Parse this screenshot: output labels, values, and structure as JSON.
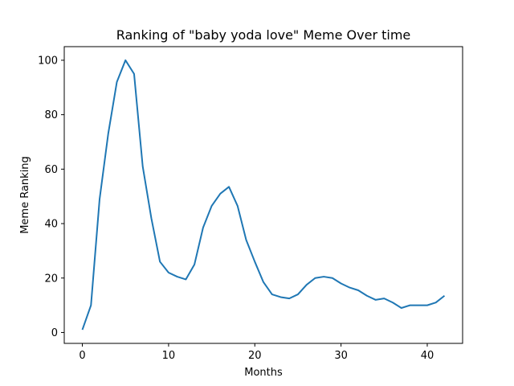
{
  "chart_data": {
    "type": "line",
    "title": "Ranking of \"baby yoda love\" Meme Over time",
    "xlabel": "Months",
    "ylabel": "Meme Ranking",
    "xlim": [
      -2.1,
      44.1
    ],
    "ylim": [
      -4,
      105
    ],
    "xticks": [
      0,
      10,
      20,
      30,
      40
    ],
    "yticks": [
      0,
      20,
      40,
      60,
      80,
      100
    ],
    "grid": false,
    "legend": "none",
    "series": [
      {
        "color": "#1f77b4",
        "x": [
          0,
          1,
          2,
          3,
          4,
          5,
          6,
          7,
          8,
          9,
          10,
          11,
          12,
          13,
          14,
          15,
          16,
          17,
          18,
          19,
          20,
          21,
          22,
          23,
          24,
          25,
          26,
          27,
          28,
          29,
          30,
          31,
          32,
          33,
          34,
          35,
          36,
          37,
          38,
          39,
          40,
          41,
          42
        ],
        "values": [
          1,
          10,
          49,
          73,
          92,
          100,
          95,
          61,
          42,
          26,
          22,
          20.5,
          19.5,
          25,
          38.5,
          46.5,
          51,
          53.5,
          46.5,
          34,
          26,
          18.5,
          14,
          13,
          12.5,
          14,
          17.5,
          20,
          20.5,
          20,
          18,
          16.5,
          15.5,
          13.5,
          12,
          12.5,
          11,
          9,
          10,
          10,
          10,
          11,
          13.5
        ]
      }
    ]
  }
}
